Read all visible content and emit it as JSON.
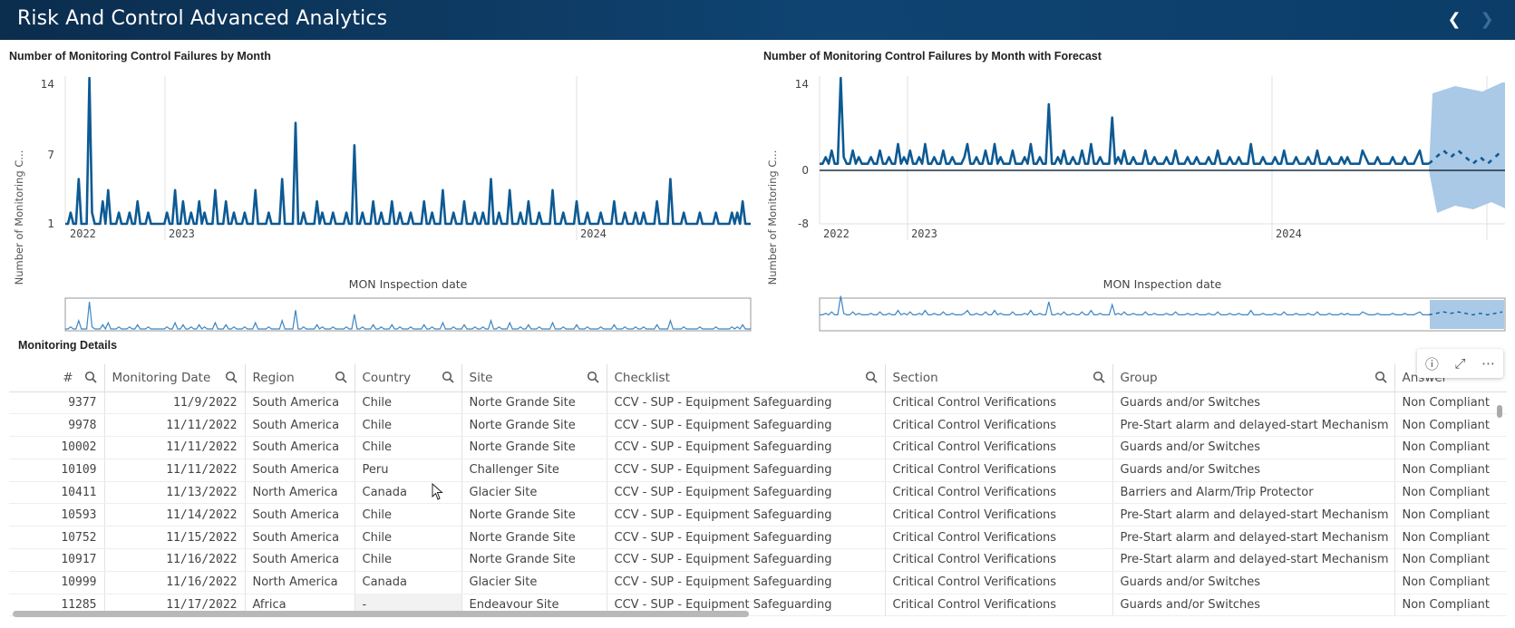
{
  "header": {
    "title": "Risk And Control Advanced Analytics",
    "back_icon": "chevron-left-icon",
    "forward_icon": "chevron-right-icon"
  },
  "charts": {
    "left": {
      "title": "Number of Monitoring Control Failures by Month",
      "ylabel": "Number of Monitoring C...",
      "xlabel": "MON Inspection date",
      "yticks": [
        "14",
        "7",
        "1"
      ],
      "xticks": [
        "2022",
        "2023",
        "2024"
      ]
    },
    "right": {
      "title": "Number of Monitoring Control Failures by Month with Forecast",
      "ylabel": "Number of Monitoring C...",
      "xlabel": "MON Inspection date",
      "yticks": [
        "14",
        "0",
        "-8"
      ],
      "xticks": [
        "2022",
        "2023",
        "2024"
      ]
    }
  },
  "chart_data": [
    {
      "type": "line",
      "title": "Number of Monitoring Control Failures by Month",
      "ylabel": "Number of Monitoring C...",
      "xlabel": "MON Inspection date",
      "ylim": [
        1,
        14
      ],
      "x_ticks": [
        "2022",
        "2023",
        "2024"
      ],
      "series": [
        {
          "values": [
            1,
            1,
            2,
            1,
            1,
            5,
            1,
            1,
            1,
            14,
            2,
            1,
            1,
            1,
            3,
            1,
            4,
            1,
            1,
            1,
            2,
            1,
            1,
            1,
            2,
            1,
            1,
            3,
            1,
            1,
            1,
            2,
            1,
            1,
            1,
            1,
            1,
            1,
            2,
            1,
            1,
            4,
            1,
            1,
            3,
            1,
            1,
            2,
            1,
            1,
            3,
            1,
            2,
            1,
            1,
            1,
            4,
            1,
            1,
            1,
            3,
            1,
            1,
            2,
            1,
            1,
            1,
            2,
            1,
            1,
            1,
            4,
            1,
            1,
            1,
            1,
            2,
            1,
            1,
            1,
            1,
            5,
            1,
            1,
            1,
            1,
            10,
            1,
            1,
            2,
            1,
            1,
            1,
            1,
            3,
            1,
            2,
            1,
            1,
            1,
            2,
            1,
            1,
            1,
            1,
            2,
            1,
            1,
            8,
            1,
            1,
            2,
            1,
            1,
            1,
            3,
            1,
            1,
            2,
            1,
            1,
            1,
            3,
            1,
            1,
            2,
            1,
            1,
            1,
            2,
            1,
            1,
            1,
            1,
            3,
            1,
            1,
            2,
            1,
            1,
            1,
            4,
            1,
            1,
            1,
            2,
            1,
            1,
            1,
            3,
            1,
            1,
            1,
            2,
            1,
            1,
            2,
            1,
            1,
            5,
            1,
            1,
            2,
            1,
            1,
            1,
            4,
            1,
            1,
            1,
            2,
            1,
            1,
            3,
            1,
            1,
            1,
            2,
            1,
            1,
            1,
            1,
            4,
            1,
            1,
            1,
            2,
            1,
            1,
            1,
            1,
            3,
            1,
            1,
            1,
            2,
            1,
            1,
            1,
            1,
            2,
            1,
            1,
            1,
            1,
            3,
            1,
            1,
            1,
            2,
            1,
            1,
            1,
            2,
            1,
            1,
            2,
            1,
            1,
            1,
            1,
            3,
            1,
            1,
            1,
            1,
            5,
            1,
            1,
            1,
            1,
            2,
            1,
            1,
            1,
            1,
            1,
            2,
            1,
            1,
            1,
            1,
            1,
            2,
            1,
            1,
            1,
            1,
            1,
            2,
            1,
            2,
            1,
            3,
            1,
            1,
            1
          ]
        }
      ]
    },
    {
      "type": "line",
      "title": "Number of Monitoring Control Failures by Month with Forecast",
      "ylabel": "Number of Monitoring C...",
      "xlabel": "MON Inspection date",
      "ylim": [
        -8,
        14
      ],
      "x_ticks": [
        "2022",
        "2023",
        "2024"
      ],
      "series": [
        {
          "values": [
            1,
            1,
            2,
            1,
            3,
            1,
            1,
            14,
            2,
            1,
            1,
            3,
            1,
            2,
            1,
            1,
            1,
            2,
            1,
            1,
            3,
            1,
            1,
            2,
            1,
            1,
            4,
            1,
            2,
            1,
            3,
            1,
            1,
            2,
            1,
            4,
            1,
            1,
            2,
            1,
            1,
            3,
            1,
            1,
            2,
            1,
            1,
            1,
            2,
            4,
            1,
            1,
            2,
            1,
            1,
            3,
            1,
            1,
            4,
            1,
            2,
            1,
            1,
            1,
            3,
            1,
            1,
            1,
            2,
            1,
            4,
            1,
            1,
            2,
            1,
            1,
            10,
            1,
            1,
            2,
            1,
            3,
            1,
            1,
            2,
            1,
            1,
            3,
            1,
            1,
            4,
            1,
            1,
            2,
            1,
            1,
            1,
            8,
            1,
            2,
            1,
            3,
            1,
            1,
            2,
            1,
            1,
            1,
            3,
            1,
            1,
            2,
            1,
            1,
            1,
            2,
            1,
            1,
            3,
            1,
            1,
            1,
            2,
            1,
            1,
            2,
            1,
            1,
            1,
            2,
            1,
            1,
            3,
            1,
            1,
            1,
            2,
            1,
            1,
            2,
            1,
            1,
            1,
            4,
            1,
            1,
            1,
            2,
            1,
            1,
            1,
            2,
            1,
            1,
            3,
            1,
            1,
            1,
            2,
            1,
            1,
            1,
            2,
            1,
            1,
            3,
            1,
            1,
            1,
            2,
            1,
            1,
            1,
            2,
            1,
            2,
            1,
            1,
            1,
            1,
            3,
            2,
            1,
            1,
            1,
            2,
            1,
            1,
            1,
            1,
            2,
            1,
            1,
            1,
            2,
            1,
            1,
            1,
            2,
            3,
            1,
            1,
            1
          ]
        },
        {
          "name": "Forecast",
          "values": [
            1,
            2,
            3,
            2,
            3,
            2,
            1,
            2,
            1,
            2,
            3
          ]
        }
      ]
    }
  ],
  "details": {
    "title": "Monitoring Details",
    "toolbar": {
      "info_icon": "info-icon",
      "expand_icon": "expand-icon",
      "more_icon": "more-icon"
    },
    "columns": [
      "#",
      "Monitoring Date",
      "Region",
      "Country",
      "Site",
      "Checklist",
      "Section",
      "Group",
      "Answer"
    ],
    "rows": [
      [
        "9377",
        "11/9/2022",
        "South America",
        "Chile",
        "Norte Grande Site",
        "CCV - SUP - Equipment Safeguarding",
        "Critical Control Verifications",
        "Guards and/or Switches",
        "Non Compliant"
      ],
      [
        "9978",
        "11/11/2022",
        "South America",
        "Chile",
        "Norte Grande Site",
        "CCV - SUP - Equipment Safeguarding",
        "Critical Control Verifications",
        "Pre-Start alarm and delayed-start Mechanism",
        "Non Compliant"
      ],
      [
        "10002",
        "11/11/2022",
        "South America",
        "Chile",
        "Norte Grande Site",
        "CCV - SUP - Equipment Safeguarding",
        "Critical Control Verifications",
        "Guards and/or Switches",
        "Non Compliant"
      ],
      [
        "10109",
        "11/11/2022",
        "South America",
        "Peru",
        "Challenger Site",
        "CCV - SUP - Equipment Safeguarding",
        "Critical Control Verifications",
        "Guards and/or Switches",
        "Non Compliant"
      ],
      [
        "10411",
        "11/13/2022",
        "North America",
        "Canada",
        "Glacier Site",
        "CCV - SUP - Equipment Safeguarding",
        "Critical Control Verifications",
        "Barriers and Alarm/Trip Protector",
        "Non Compliant"
      ],
      [
        "10593",
        "11/14/2022",
        "South America",
        "Chile",
        "Norte Grande Site",
        "CCV - SUP - Equipment Safeguarding",
        "Critical Control Verifications",
        "Pre-Start alarm and delayed-start Mechanism",
        "Non Compliant"
      ],
      [
        "10752",
        "11/15/2022",
        "South America",
        "Chile",
        "Norte Grande Site",
        "CCV - SUP - Equipment Safeguarding",
        "Critical Control Verifications",
        "Pre-Start alarm and delayed-start Mechanism",
        "Non Compliant"
      ],
      [
        "10917",
        "11/16/2022",
        "South America",
        "Chile",
        "Norte Grande Site",
        "CCV - SUP - Equipment Safeguarding",
        "Critical Control Verifications",
        "Pre-Start alarm and delayed-start Mechanism",
        "Non Compliant"
      ],
      [
        "10999",
        "11/16/2022",
        "North America",
        "Canada",
        "Glacier Site",
        "CCV - SUP - Equipment Safeguarding",
        "Critical Control Verifications",
        "Guards and/or Switches",
        "Non Compliant"
      ],
      [
        "11285",
        "11/17/2022",
        "Africa",
        "-",
        "Endeavour Site",
        "CCV - SUP - Equipment Safeguarding",
        "Critical Control Verifications",
        "Guards and/or Switches",
        "Non Compliant"
      ]
    ]
  },
  "colors": {
    "header_bg": "#0f4472",
    "line": "#0d5a94",
    "forecast_band": "#a9c9e6",
    "grid": "#e0e0e0"
  }
}
